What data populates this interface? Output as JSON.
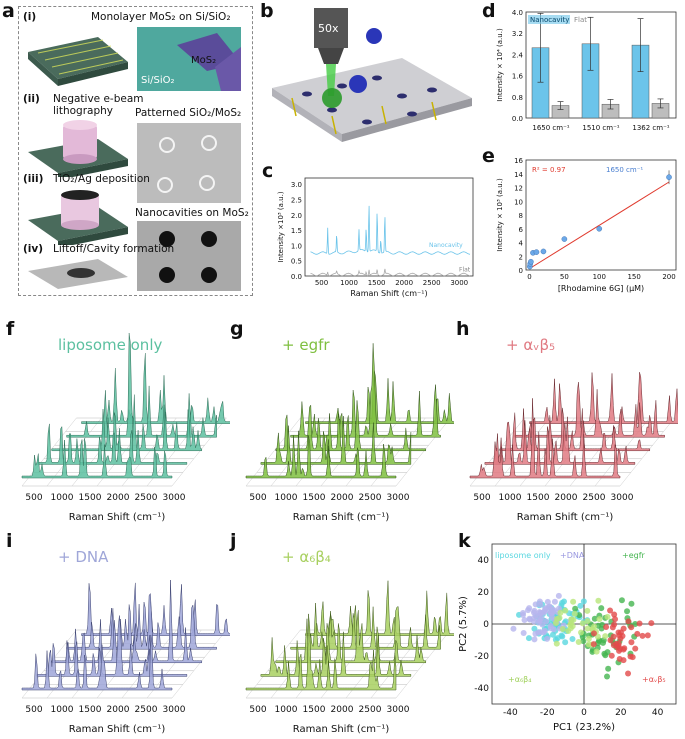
{
  "figure": {
    "panel_labels": [
      "a",
      "b",
      "c",
      "d",
      "e",
      "f",
      "g",
      "h",
      "i",
      "j",
      "k"
    ],
    "colors": {
      "liposome": "#5cc0a0",
      "egfr": "#7fbf40",
      "avb5": "#e07a82",
      "dna": "#9fa6d8",
      "a6b4": "#a8d060",
      "nanocavity": "#6cc4ea",
      "flat": "#aaaaaa",
      "fit": "#e03a2e"
    }
  },
  "panel_a": {
    "steps": [
      {
        "num": "(i)",
        "text": "Monolayer MoS₂ on Si/SiO₂"
      },
      {
        "num": "(ii)",
        "text": "Negative e-beam\nlithography"
      },
      {
        "num": "(iii)",
        "text": "TiO₂/Ag deposition"
      },
      {
        "num": "(iv)",
        "text": "Liftoff/Cavity formation"
      }
    ],
    "micro_titles": [
      "Patterned SiO₂/MoS₂",
      "Nanocavities on MoS₂"
    ],
    "mos2_label": "MoS₂",
    "sisio2_label": "Si/SiO₂"
  },
  "panel_b": {
    "objective": "50x"
  },
  "panel_c": {
    "ylabel": "Intensity ×10³ (a.u.)",
    "xlabel": "Raman Shift (cm⁻¹)",
    "yticks": [
      "0.0",
      "0.5",
      "1.0",
      "1.5",
      "2.0",
      "2.5",
      "3.0"
    ],
    "xticks": [
      "500",
      "1000",
      "1500",
      "2000",
      "2500",
      "3000"
    ],
    "legend": [
      "Nanocavity",
      "Flat"
    ]
  },
  "panel_d": {
    "ylabel": "Intensity × 10⁴ (a.u.)",
    "yticks": [
      "0.0",
      "0.8",
      "1.6",
      "2.4",
      "3.2",
      "4.0"
    ],
    "legend": [
      "Nanocavity",
      "Flat"
    ],
    "categories": [
      "1650 cm⁻¹",
      "1510 cm⁻¹",
      "1362 cm⁻¹"
    ]
  },
  "panel_e": {
    "ylabel": "Intensity × 10³ (a.u.)",
    "xlabel": "[Rhodamine 6G] (μM)",
    "r2": "R² = 0.97",
    "band": "1650 cm⁻¹",
    "yticks": [
      "0",
      "2",
      "4",
      "6",
      "8",
      "10",
      "12",
      "14",
      "16"
    ],
    "xticks": [
      "0",
      "50",
      "100",
      "150",
      "200"
    ]
  },
  "spectra_panels": [
    {
      "key": "f",
      "title": "liposome only",
      "color": "#5cc0a0",
      "stroke": "#2e6e58"
    },
    {
      "key": "g",
      "title": "+ egfr",
      "color": "#7fbf40",
      "stroke": "#33551c"
    },
    {
      "key": "h",
      "title": "+ αᵥβ₅",
      "color": "#e07a82",
      "stroke": "#6a2a30"
    },
    {
      "key": "i",
      "title": "+ DNA",
      "color": "#9fa6d8",
      "stroke": "#3c4270"
    },
    {
      "key": "j",
      "title": "+ α₆β₄",
      "color": "#a8d060",
      "stroke": "#3e5a1a"
    }
  ],
  "spectra_axis": {
    "xticks": [
      "500",
      "1000",
      "1500",
      "2000",
      "2500",
      "3000"
    ],
    "xlabel": "Raman Shift (cm⁻¹)"
  },
  "panel_k": {
    "xlabel": "PC1 (23.2%)",
    "ylabel": "PC2 (5.7%)",
    "xticks": [
      "-40",
      "-20",
      "0",
      "20",
      "40"
    ],
    "yticks": [
      "-40",
      "-20",
      "0",
      "20",
      "40"
    ],
    "legend": [
      "liposome only",
      "+DNA",
      "+egfr",
      "+α₆β₄",
      "+αᵥβ₅"
    ]
  },
  "chart_data": [
    {
      "type": "bar",
      "panel": "d",
      "categories": [
        "1650 cm⁻¹",
        "1510 cm⁻¹",
        "1362 cm⁻¹"
      ],
      "series": [
        {
          "name": "Nanocavity",
          "values": [
            2.65,
            2.8,
            2.75
          ],
          "errors": [
            1.3,
            1.0,
            1.0
          ]
        },
        {
          "name": "Flat",
          "values": [
            0.47,
            0.52,
            0.55
          ],
          "errors": [
            0.15,
            0.18,
            0.17
          ]
        }
      ],
      "ylabel": "Intensity × 10⁴ (a.u.)",
      "ylim": [
        0,
        4.0
      ]
    },
    {
      "type": "scatter",
      "panel": "e",
      "x": [
        0.5,
        1,
        2,
        5,
        10,
        20,
        50,
        100,
        200
      ],
      "y": [
        0.5,
        0.9,
        1.2,
        2.5,
        2.6,
        2.7,
        4.5,
        6.0,
        13.5
      ],
      "fit_line": {
        "x": [
          0,
          200
        ],
        "y": [
          0.2,
          12.8
        ]
      },
      "xlabel": "[Rhodamine 6G] (μM)",
      "ylabel": "Intensity × 10³ (a.u.)",
      "xlim": [
        -5,
        210
      ],
      "ylim": [
        0,
        16
      ]
    },
    {
      "type": "line",
      "panel": "c",
      "series": [
        {
          "name": "Nanocavity",
          "baseline": 0.75,
          "peaks": [
            [
              612,
              1.55
            ],
            [
              775,
              1.05
            ],
            [
              1180,
              1.25
            ],
            [
              1310,
              1.35
            ],
            [
              1362,
              2.85
            ],
            [
              1510,
              2.35
            ],
            [
              1575,
              0.8
            ],
            [
              1650,
              2.15
            ]
          ]
        },
        {
          "name": "Flat",
          "baseline": 0.05,
          "peaks": [
            [
              612,
              0.2
            ],
            [
              775,
              0.15
            ],
            [
              1180,
              0.18
            ],
            [
              1310,
              0.2
            ],
            [
              1362,
              0.35
            ],
            [
              1510,
              0.3
            ],
            [
              1650,
              0.3
            ]
          ]
        }
      ],
      "xlabel": "Raman Shift (cm⁻¹)",
      "ylabel": "Intensity ×10³ (a.u.)",
      "xlim": [
        200,
        3250
      ],
      "ylim": [
        0,
        3.2
      ]
    },
    {
      "type": "scatter",
      "panel": "k",
      "series": [
        {
          "name": "liposome only",
          "color": "#5ad7e0",
          "center": [
            -12,
            2
          ],
          "spread": [
            16,
            12
          ],
          "n": 70
        },
        {
          "name": "+DNA",
          "color": "#b7b5ee",
          "center": [
            -22,
            4
          ],
          "spread": [
            12,
            12
          ],
          "n": 60
        },
        {
          "name": "+egfr",
          "color": "#45b550",
          "center": [
            15,
            -6
          ],
          "spread": [
            18,
            18
          ],
          "n": 45
        },
        {
          "name": "+α₆β₄",
          "color": "#b9e67a",
          "center": [
            0,
            -2
          ],
          "spread": [
            16,
            14
          ],
          "n": 35
        },
        {
          "name": "+αᵥβ₅",
          "color": "#e24a4a",
          "center": [
            20,
            -8
          ],
          "spread": [
            16,
            16
          ],
          "n": 40
        }
      ],
      "xlabel": "PC1 (23.2%)",
      "ylabel": "PC2 (5.7%)",
      "xlim": [
        -50,
        50
      ],
      "ylim": [
        -50,
        50
      ]
    }
  ]
}
